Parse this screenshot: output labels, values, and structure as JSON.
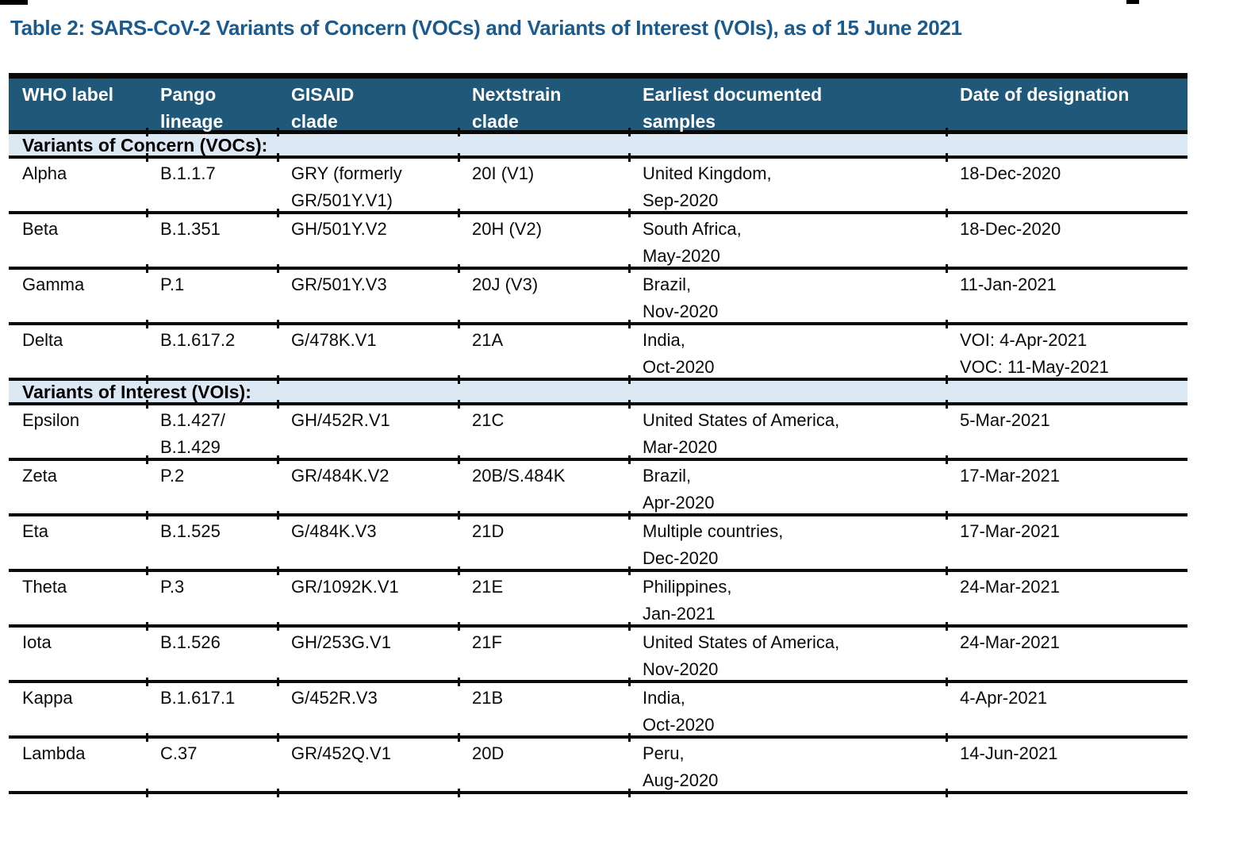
{
  "page": {
    "title": "Table 2: SARS-CoV-2 Variants of Concern (VOCs) and Variants of Interest (VOIs), as of 15 June 2021"
  },
  "colors": {
    "title_text": "#1A5A8C",
    "header_bg": "#20587A",
    "header_text": "#FFFFFF",
    "section_bg": "#DCE8F4",
    "body_text": "#0B0B0B",
    "border": "#0A0A0A"
  },
  "table": {
    "columns": [
      "WHO label",
      "Pango\nlineage",
      "GISAID\nclade",
      "Nextstrain\nclade",
      "Earliest documented\nsamples",
      "Date of designation"
    ],
    "sections": [
      {
        "label": "Variants of Concern (VOCs):",
        "rows": [
          [
            "Alpha",
            "B.1.1.7",
            "GRY (formerly\nGR/501Y.V1)",
            "20I (V1)",
            "United Kingdom,\nSep-2020",
            "18-Dec-2020"
          ],
          [
            "Beta",
            "B.1.351",
            "GH/501Y.V2",
            "20H (V2)",
            "South Africa,\nMay-2020",
            "18-Dec-2020"
          ],
          [
            "Gamma",
            "P.1",
            "GR/501Y.V3",
            "20J (V3)",
            "Brazil,\nNov-2020",
            "11-Jan-2021"
          ],
          [
            "Delta",
            "B.1.617.2",
            "G/478K.V1",
            "21A",
            "India,\nOct-2020",
            "VOI: 4-Apr-2021\nVOC: 11-May-2021"
          ]
        ]
      },
      {
        "label": "Variants of Interest (VOIs):",
        "rows": [
          [
            "Epsilon",
            "B.1.427/\nB.1.429",
            "GH/452R.V1",
            "21C",
            "United States of America,\nMar-2020",
            "5-Mar-2021"
          ],
          [
            "Zeta",
            "P.2",
            "GR/484K.V2",
            "20B/S.484K",
            "Brazil,\nApr-2020",
            "17-Mar-2021"
          ],
          [
            "Eta",
            "B.1.525",
            "G/484K.V3",
            "21D",
            "Multiple countries,\nDec-2020",
            "17-Mar-2021"
          ],
          [
            "Theta",
            "P.3",
            "GR/1092K.V1",
            "21E",
            "Philippines,\nJan-2021",
            "24-Mar-2021"
          ],
          [
            "Iota",
            "B.1.526",
            "GH/253G.V1",
            "21F",
            "United States of America,\nNov-2020",
            "24-Mar-2021"
          ],
          [
            "Kappa",
            "B.1.617.1",
            "G/452R.V3",
            "21B",
            "India,\nOct-2020",
            "4-Apr-2021"
          ],
          [
            "Lambda",
            "C.37",
            "GR/452Q.V1",
            "20D",
            "Peru,\nAug-2020",
            "14-Jun-2021"
          ]
        ]
      }
    ]
  }
}
